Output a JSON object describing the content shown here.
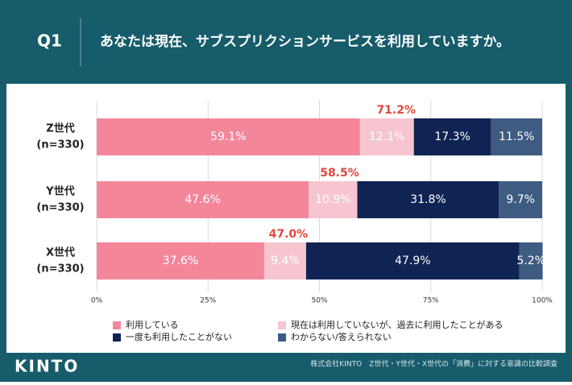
{
  "header": {
    "label": "Q1",
    "question": "あなたは現在、サブスプリクションサービスを利用していますか。"
  },
  "chart_data": {
    "type": "stacked-bar-horizontal",
    "categories": [
      [
        "Z世代",
        "(n=330)"
      ],
      [
        "Y世代",
        "(n=330)"
      ],
      [
        "X世代",
        "(n=330)"
      ]
    ],
    "series": [
      {
        "name": "利用している",
        "color": "#f4869c",
        "values": [
          59.1,
          47.6,
          37.6
        ],
        "value_labels": [
          "59.1%",
          "47.6%",
          "37.6%"
        ]
      },
      {
        "name": "現在は利用していないが、過去に利用したことがある",
        "color": "#f6c5d0",
        "values": [
          12.1,
          10.9,
          9.4
        ],
        "value_labels": [
          "12.1%",
          "10.9%",
          "9.4%"
        ]
      },
      {
        "name": "一度も利用したことがない",
        "color": "#0f2453",
        "values": [
          17.3,
          31.8,
          47.9
        ],
        "value_labels": [
          "17.3%",
          "31.8%",
          "47.9%"
        ]
      },
      {
        "name": "わからない/答えられない",
        "color": "#3e5b82",
        "values": [
          11.5,
          9.7,
          5.2
        ],
        "value_labels": [
          "11.5%",
          "9.7%",
          "5.2%"
        ]
      }
    ],
    "totals": {
      "values": [
        71.2,
        58.5,
        47.0
      ],
      "value_labels": [
        "71.2%",
        "58.5%",
        "47.0%"
      ],
      "color": "#e2473b"
    },
    "xlim": [
      0,
      100
    ],
    "xticks": [
      {
        "value": 0,
        "label": "0%"
      },
      {
        "value": 25,
        "label": "25%"
      },
      {
        "value": 50,
        "label": "50%"
      },
      {
        "value": 75,
        "label": "75%"
      },
      {
        "value": 100,
        "label": "100%"
      }
    ],
    "grid": true
  },
  "footer": {
    "logo": "KINTO",
    "source": "株式会社KINTO　Z世代・Y世代・X世代の「消費」に対する意識の比較調査"
  }
}
